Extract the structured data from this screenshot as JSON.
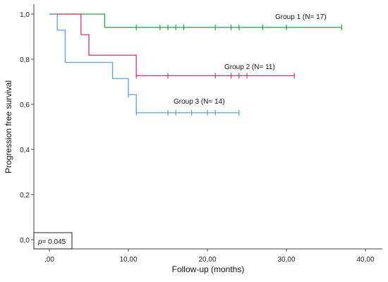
{
  "chart_data": {
    "type": "line",
    "step": true,
    "xlabel": "Follow-up (months)",
    "ylabel": "Progression free survival",
    "xlim": [
      -2,
      40
    ],
    "ylim": [
      0,
      1.0
    ],
    "xticks": [
      0,
      10,
      20,
      30,
      40
    ],
    "xtick_labels": [
      ",00",
      "10,00",
      "20,00",
      "30,00",
      "40,00"
    ],
    "yticks": [
      0,
      0.2,
      0.4,
      0.6,
      0.8,
      1.0
    ],
    "ytick_labels": [
      "0,0",
      "0,2",
      "0,4",
      "0,6",
      "0,8",
      "1,0"
    ],
    "grid": false,
    "annotation": {
      "italic": "p",
      "rest": "= 0.045"
    },
    "series": [
      {
        "name": "Group 1 (N= 17)",
        "color": "#2e9e3e",
        "steps": [
          [
            0,
            1.0
          ],
          [
            7,
            0.941
          ],
          [
            37,
            0.941
          ]
        ],
        "censored": [
          11,
          14,
          15,
          16,
          17,
          21,
          23,
          24,
          27,
          30,
          37
        ],
        "censored_y": 0.941
      },
      {
        "name": "Group 2 (N= 11)",
        "color": "#e3345a",
        "steps": [
          [
            0,
            1.0
          ],
          [
            4,
            0.909
          ],
          [
            5,
            0.818
          ],
          [
            11,
            0.727
          ],
          [
            31,
            0.727
          ]
        ],
        "censored": [
          11,
          15,
          21,
          23,
          24,
          25,
          31
        ],
        "censored_y": 0.727
      },
      {
        "name": "Group 3 (N= 14)",
        "color": "#5aa2dc",
        "steps": [
          [
            0,
            1.0
          ],
          [
            1,
            0.929
          ],
          [
            2,
            0.786
          ],
          [
            8,
            0.714
          ],
          [
            10,
            0.643
          ],
          [
            11,
            0.563
          ],
          [
            24,
            0.563
          ]
        ],
        "censored": [
          10,
          11,
          15,
          16,
          18,
          20,
          21,
          24
        ],
        "censored_y_map": {
          "10": 0.643
        },
        "censored_y": 0.563
      }
    ]
  }
}
